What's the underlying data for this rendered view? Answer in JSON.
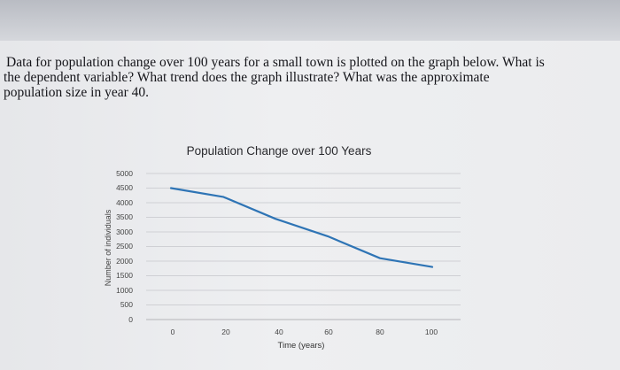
{
  "question": {
    "line1": "Data for population change over 100 years for a small town is plotted on the graph below. What is",
    "line2": "the dependent variable? What trend does the graph illustrate? What was the approximate",
    "line3": "population size in year 40."
  },
  "chart_data": {
    "type": "line",
    "title": "Population Change over 100 Years",
    "xlabel": "Time (years)",
    "ylabel": "Number of individuals",
    "xlim": [
      0,
      100
    ],
    "ylim": [
      0,
      5000
    ],
    "x_ticks": [
      "0",
      "20",
      "40",
      "60",
      "80",
      "100"
    ],
    "y_ticks": [
      "5000",
      "4500",
      "4000",
      "3500",
      "3000",
      "2500",
      "2000",
      "1500",
      "1000",
      "500",
      "0"
    ],
    "grid": true,
    "legend": "none",
    "series": [
      {
        "color": "#2e74b5",
        "x": [
          0,
          20,
          40,
          60,
          80,
          100
        ],
        "y": [
          4500,
          4200,
          3450,
          2850,
          2100,
          1800
        ]
      }
    ]
  }
}
